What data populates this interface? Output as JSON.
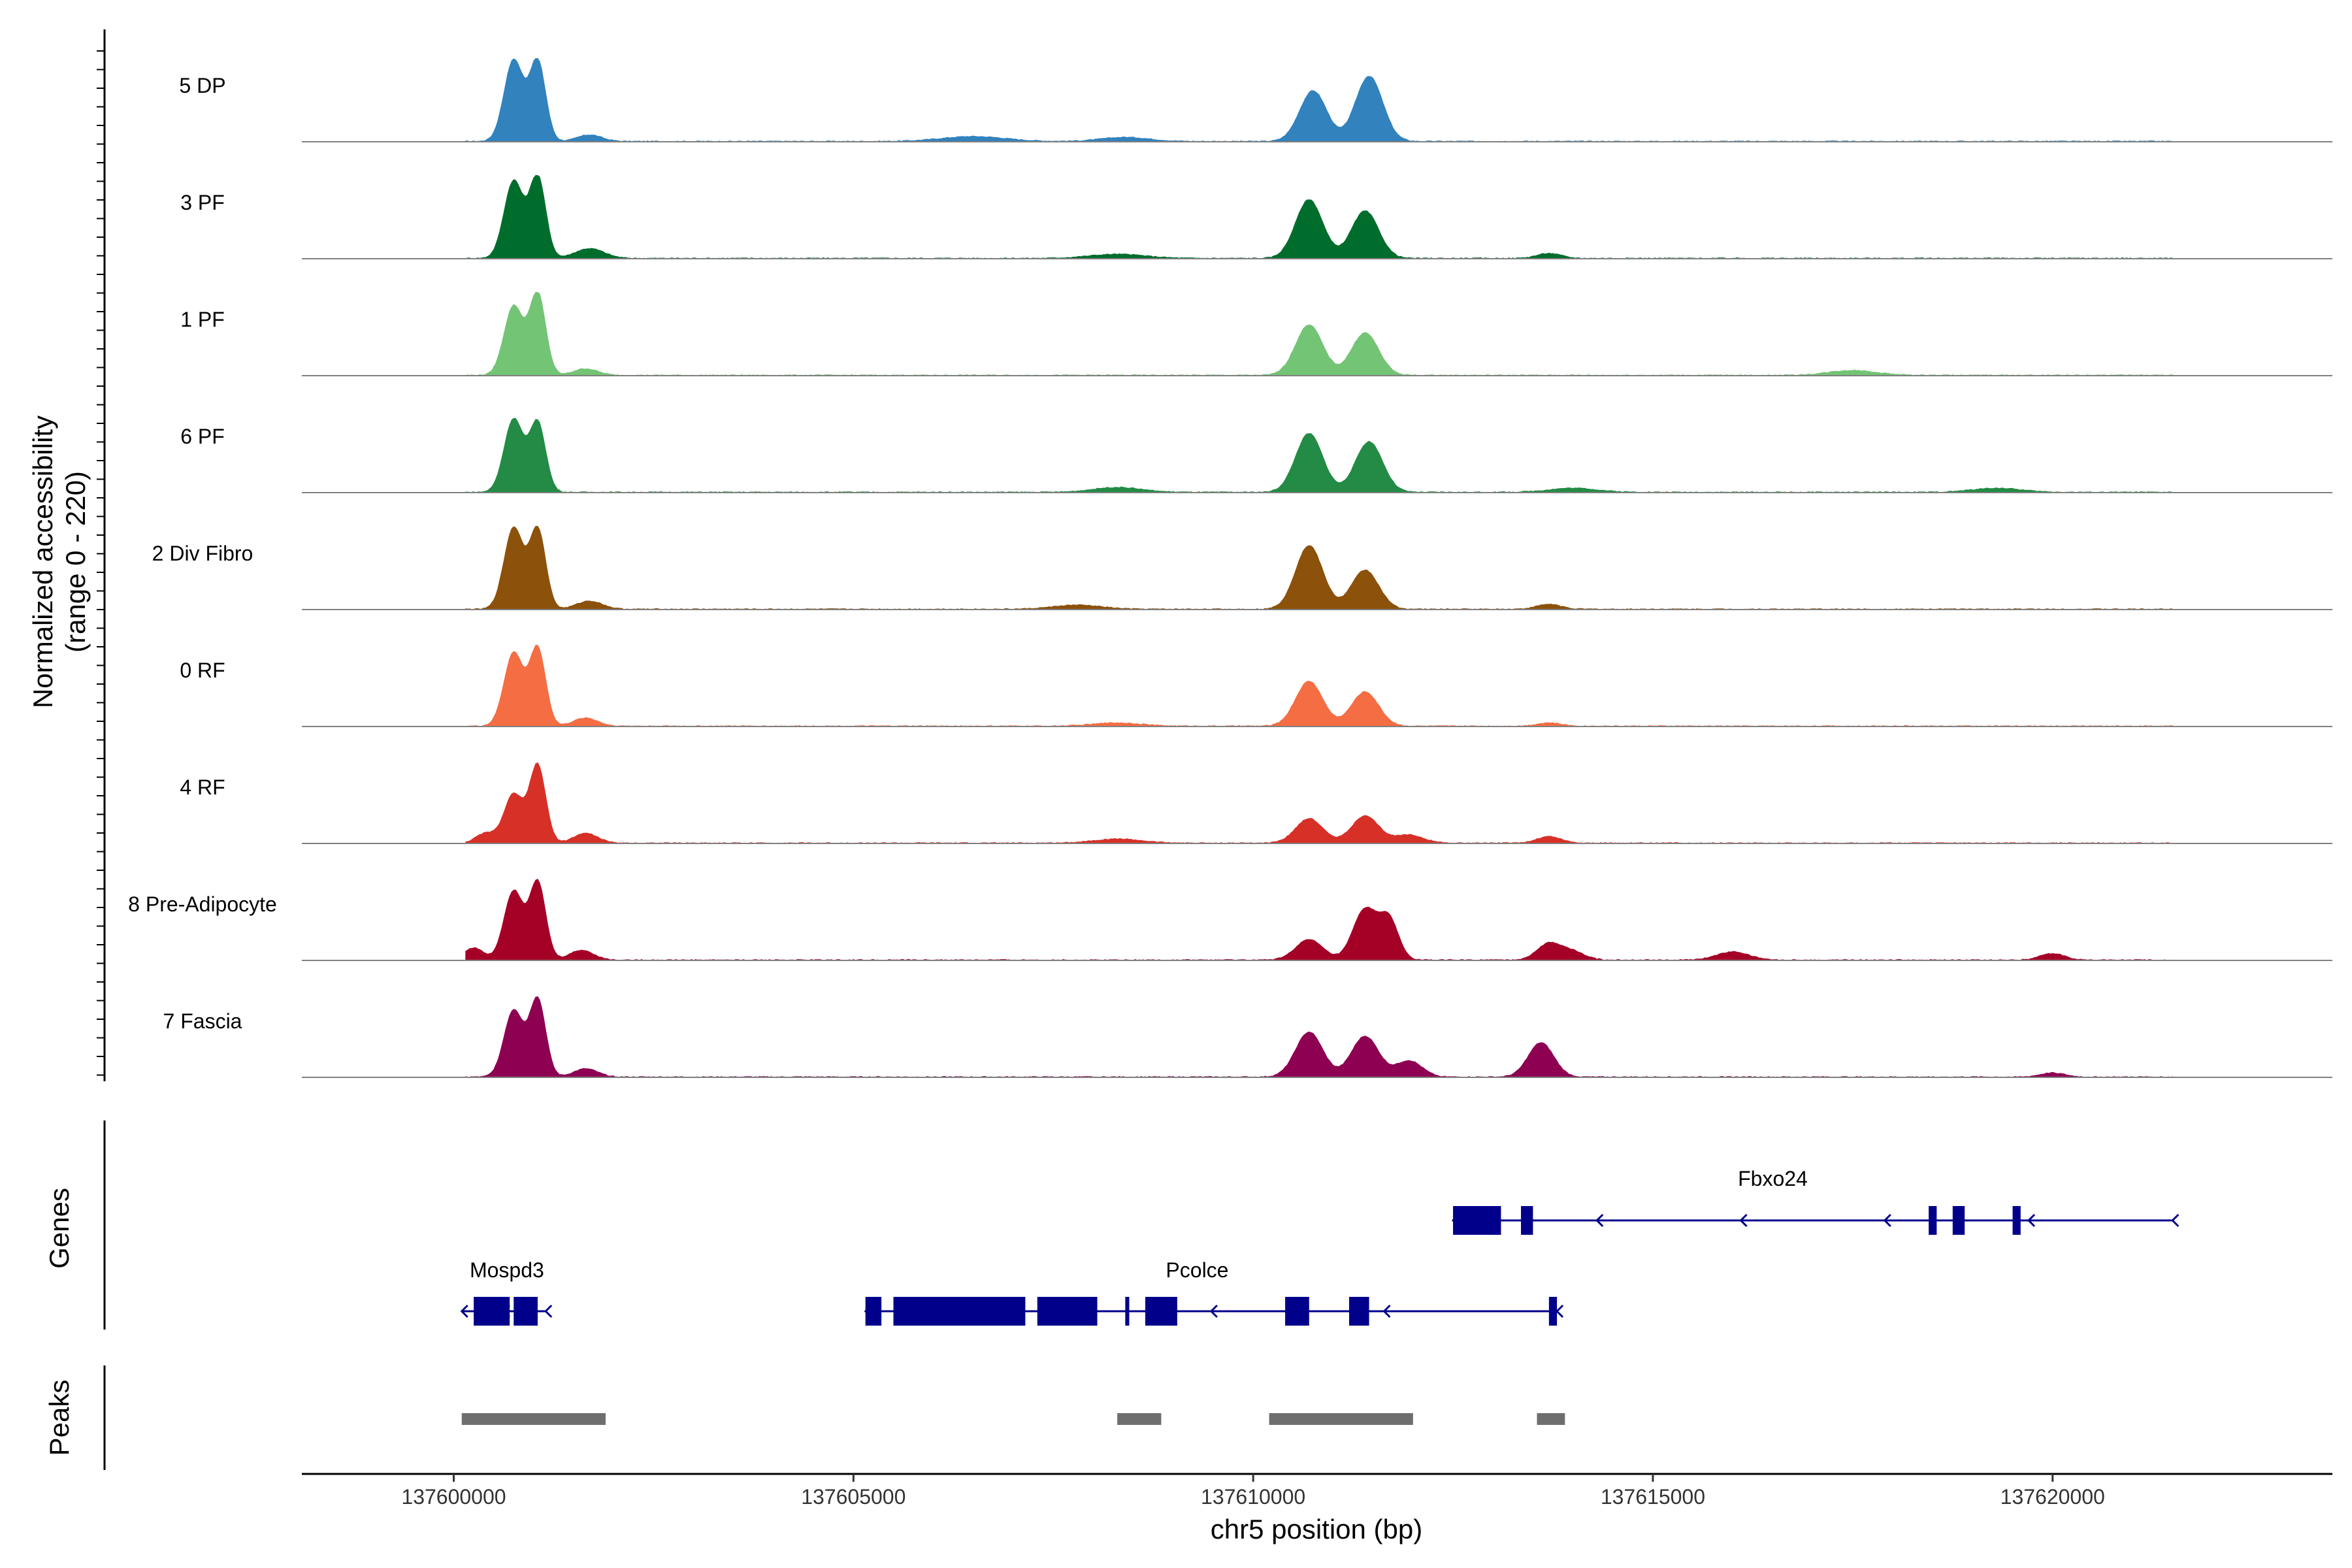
{
  "chart_data": {
    "type": "area",
    "title": "",
    "xlabel": "chr5 position (bp)",
    "ylabel_line1": "Normalized accessibility",
    "ylabel_line2": "(range 0 - 220)",
    "y_range": [
      0,
      220
    ],
    "xlim": [
      137598100,
      137623500
    ],
    "x_ticks": [
      137600000,
      137605000,
      137610000,
      137615000,
      137620000
    ],
    "x_tick_labels": [
      "137600000",
      "137605000",
      "137610000",
      "137615000",
      "137620000"
    ],
    "coverage_extent": [
      137600150,
      137621500
    ],
    "track_panel_labels": {
      "genes": "Genes",
      "peaks": "Peaks"
    },
    "series": [
      {
        "name": "5 DP",
        "color": "#3182bd",
        "peaks": [
          [
            137600750,
            1.0,
            120
          ],
          [
            137601050,
            0.98,
            100
          ],
          [
            137610750,
            0.62,
            170
          ],
          [
            137611450,
            0.8,
            170
          ],
          [
            137601700,
            0.08,
            150
          ],
          [
            137606500,
            0.06,
            400
          ],
          [
            137608400,
            0.05,
            300
          ]
        ]
      },
      {
        "name": "3 PF",
        "color": "#006d2c",
        "peaks": [
          [
            137600750,
            0.95,
            120
          ],
          [
            137601050,
            1.0,
            100
          ],
          [
            137610700,
            0.72,
            170
          ],
          [
            137611400,
            0.58,
            170
          ],
          [
            137601700,
            0.12,
            180
          ],
          [
            137608300,
            0.05,
            350
          ],
          [
            137613700,
            0.06,
            150
          ]
        ]
      },
      {
        "name": "1 PF",
        "color": "#74c476",
        "peaks": [
          [
            137600750,
            0.85,
            120
          ],
          [
            137601050,
            1.0,
            100
          ],
          [
            137610700,
            0.62,
            170
          ],
          [
            137611400,
            0.52,
            170
          ],
          [
            137601650,
            0.08,
            150
          ],
          [
            137617500,
            0.06,
            300
          ]
        ]
      },
      {
        "name": "6 PF",
        "color": "#238b45",
        "peaks": [
          [
            137600750,
            0.9,
            120
          ],
          [
            137601050,
            0.85,
            100
          ],
          [
            137610700,
            0.72,
            170
          ],
          [
            137611450,
            0.62,
            170
          ],
          [
            137608300,
            0.06,
            300
          ],
          [
            137614000,
            0.05,
            300
          ],
          [
            137619300,
            0.05,
            300
          ]
        ]
      },
      {
        "name": "2 Div Fibro",
        "color": "#8c510a",
        "peaks": [
          [
            137600750,
            1.0,
            120
          ],
          [
            137601050,
            0.98,
            100
          ],
          [
            137610700,
            0.78,
            170
          ],
          [
            137611400,
            0.48,
            170
          ],
          [
            137601700,
            0.1,
            160
          ],
          [
            137613700,
            0.06,
            150
          ],
          [
            137607800,
            0.05,
            300
          ]
        ]
      },
      {
        "name": "0 RF",
        "color": "#f46d43",
        "peaks": [
          [
            137600750,
            0.9,
            120
          ],
          [
            137601050,
            0.95,
            100
          ],
          [
            137610700,
            0.55,
            170
          ],
          [
            137611400,
            0.42,
            170
          ],
          [
            137601650,
            0.1,
            150
          ],
          [
            137608300,
            0.04,
            300
          ],
          [
            137613700,
            0.04,
            150
          ]
        ]
      },
      {
        "name": "4 RF",
        "color": "#d73027",
        "peaks": [
          [
            137600750,
            0.6,
            120
          ],
          [
            137601050,
            0.95,
            100
          ],
          [
            137610700,
            0.3,
            170
          ],
          [
            137611400,
            0.33,
            170
          ],
          [
            137600400,
            0.12,
            120
          ],
          [
            137601650,
            0.12,
            150
          ],
          [
            137613700,
            0.08,
            150
          ],
          [
            137608300,
            0.05,
            300
          ],
          [
            137611950,
            0.1,
            180
          ]
        ]
      },
      {
        "name": "8 Pre-Adipocyte",
        "color": "#a50026",
        "peaks": [
          [
            137600750,
            0.85,
            120
          ],
          [
            137601050,
            0.95,
            100
          ],
          [
            137610700,
            0.25,
            170
          ],
          [
            137611400,
            0.62,
            150
          ],
          [
            137611700,
            0.48,
            120
          ],
          [
            137613700,
            0.2,
            150
          ],
          [
            137614000,
            0.1,
            150
          ],
          [
            137616000,
            0.1,
            200
          ],
          [
            137620000,
            0.08,
            150
          ],
          [
            137600250,
            0.15,
            120
          ],
          [
            137601600,
            0.12,
            150
          ]
        ]
      },
      {
        "name": "7 Fascia",
        "color": "#8e0152",
        "peaks": [
          [
            137600750,
            0.82,
            120
          ],
          [
            137601050,
            0.95,
            100
          ],
          [
            137610700,
            0.55,
            170
          ],
          [
            137611400,
            0.5,
            170
          ],
          [
            137613600,
            0.42,
            160
          ],
          [
            137611950,
            0.2,
            160
          ],
          [
            137601650,
            0.1,
            150
          ],
          [
            137620000,
            0.05,
            150
          ]
        ]
      }
    ],
    "genes": [
      {
        "name": "Fbxo24",
        "strand": "-",
        "line": [
          137612500,
          137621500
        ],
        "exons": [
          [
            137612500,
            137613100
          ],
          [
            137613350,
            137613500
          ],
          [
            137618450,
            137618550
          ],
          [
            137618750,
            137618900
          ],
          [
            137619500,
            137619600
          ]
        ]
      },
      {
        "name": "Mospd3",
        "strand": "-",
        "line": [
          137600100,
          137601150
        ],
        "exons": [
          [
            137600250,
            137600700
          ],
          [
            137600750,
            137601050
          ]
        ]
      },
      {
        "name": "Pcolce",
        "strand": "-",
        "line": [
          137605150,
          137613800
        ],
        "exons": [
          [
            137605150,
            137605350
          ],
          [
            137605500,
            137607150
          ],
          [
            137607300,
            137608050
          ],
          [
            137608400,
            137608450
          ],
          [
            137608650,
            137609050
          ],
          [
            137610400,
            137610700
          ],
          [
            137611200,
            137611450
          ],
          [
            137613700,
            137613800
          ]
        ]
      }
    ],
    "peaks": [
      [
        137600100,
        137601900
      ],
      [
        137608300,
        137608850
      ],
      [
        137610200,
        137612000
      ],
      [
        137613550,
        137613900
      ]
    ]
  }
}
